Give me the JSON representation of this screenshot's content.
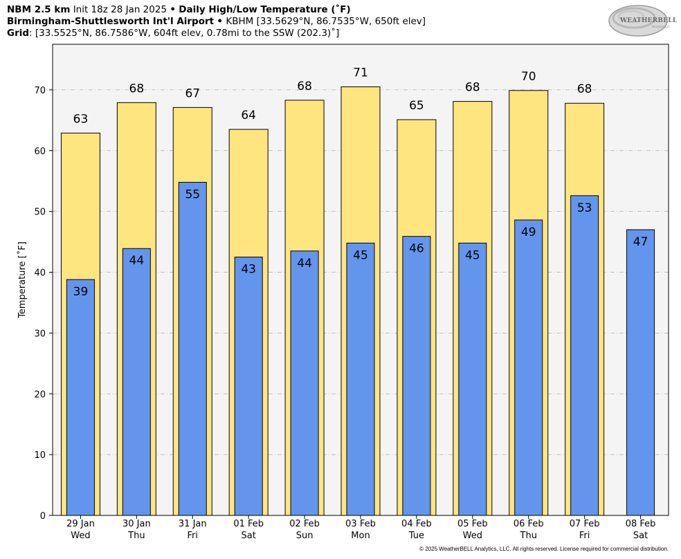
{
  "header": {
    "line1_model": "NBM 2.5 km",
    "line1_init": "Init 18z 28 Jan 2025",
    "bullet": "•",
    "line1_product": "Daily High/Low Temperature (˚F)",
    "line2_station": "Birmingham-Shuttlesworth Int'l Airport",
    "line2_info": "KBHM [33.5629°N, 86.7535°W, 650ft elev]",
    "line3_label": "Grid",
    "line3_info": ": [33.5525°N, 86.7586°W, 604ft elev, 0.78mi to the SSW (202.3)˚]"
  },
  "logo": {
    "text": "WEATHERBELL",
    "sub": "Analytics LLC"
  },
  "copyright": "© 2025 WeatherBELL Analytics, LLC. All rights reserved. License required for commercial distribution.",
  "chart_data": {
    "type": "bar",
    "ylabel": "Temperature [˚F]",
    "ylim": [
      0,
      77.5
    ],
    "yticks": [
      0,
      10,
      20,
      30,
      40,
      50,
      60,
      70
    ],
    "grid": "horizontal dashed",
    "categories": [
      {
        "date": "29 Jan",
        "day": "Wed"
      },
      {
        "date": "30 Jan",
        "day": "Thu"
      },
      {
        "date": "31 Jan",
        "day": "Fri"
      },
      {
        "date": "01 Feb",
        "day": "Sat"
      },
      {
        "date": "02 Feb",
        "day": "Sun"
      },
      {
        "date": "03 Feb",
        "day": "Mon"
      },
      {
        "date": "04 Feb",
        "day": "Tue"
      },
      {
        "date": "05 Feb",
        "day": "Wed"
      },
      {
        "date": "06 Feb",
        "day": "Thu"
      },
      {
        "date": "07 Feb",
        "day": "Fri"
      },
      {
        "date": "08 Feb",
        "day": "Sat"
      }
    ],
    "series": [
      {
        "key": "high",
        "color": "#ffe57f",
        "values": [
          62.9,
          67.9,
          67.1,
          63.5,
          68.3,
          70.5,
          65.1,
          68.1,
          69.9,
          67.8,
          null
        ],
        "labels": [
          "63",
          "68",
          "67",
          "64",
          "68",
          "71",
          "65",
          "68",
          "70",
          "68",
          null
        ]
      },
      {
        "key": "low",
        "color": "#6495ed",
        "values": [
          38.8,
          43.9,
          54.8,
          42.5,
          43.5,
          44.8,
          45.9,
          44.8,
          48.6,
          52.6,
          47.0
        ],
        "labels": [
          "39",
          "44",
          "55",
          "43",
          "44",
          "45",
          "46",
          "45",
          "49",
          "53",
          "47"
        ]
      }
    ],
    "colors": {
      "plot_bg": "#f4f4f4",
      "grid": "#b0b0b0"
    }
  }
}
